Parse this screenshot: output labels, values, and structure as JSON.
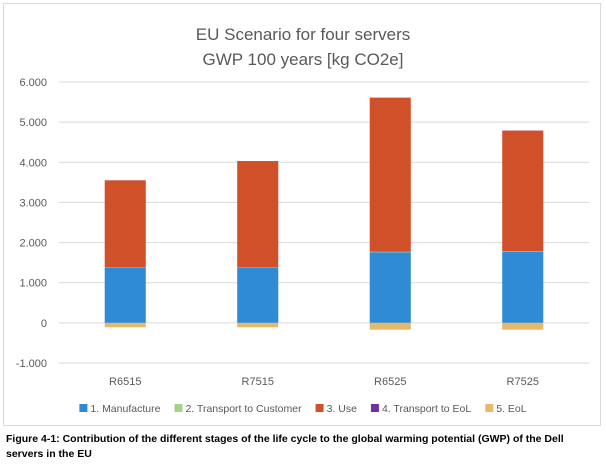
{
  "chart_data": {
    "type": "bar",
    "stacked": true,
    "title_line1": "EU Scenario for four servers",
    "title_line2": "GWP 100 years [kg CO2e]",
    "categories": [
      "R6515",
      "R7515",
      "R6525",
      "R7525"
    ],
    "series": [
      {
        "name": "1. Manufacture",
        "color": "#2e8bd4",
        "values": [
          1380,
          1380,
          1760,
          1770
        ]
      },
      {
        "name": "2. Transport to Customer",
        "color": "#a9d18e",
        "values": [
          10,
          10,
          10,
          10
        ]
      },
      {
        "name": "3. Use",
        "color": "#d0502a",
        "values": [
          2160,
          2640,
          3840,
          3010
        ]
      },
      {
        "name": "4. Transport to EoL",
        "color": "#7030a0",
        "values": [
          2,
          2,
          2,
          2
        ]
      },
      {
        "name": "5. EoL",
        "color": "#e8b86a",
        "values": [
          -110,
          -110,
          -170,
          -170
        ]
      }
    ],
    "ylim": [
      -1000,
      6000
    ],
    "yticks": [
      -1000,
      0,
      1000,
      2000,
      3000,
      4000,
      5000,
      6000
    ],
    "ytick_labels": [
      "-1.000",
      "0",
      "1.000",
      "2.000",
      "3.000",
      "4.000",
      "5.000",
      "6.000"
    ],
    "grid": true,
    "legend_position": "bottom"
  },
  "caption": "Figure 4-1: Contribution of the different stages of the life cycle to the global warming potential (GWP) of the Dell servers in the EU"
}
